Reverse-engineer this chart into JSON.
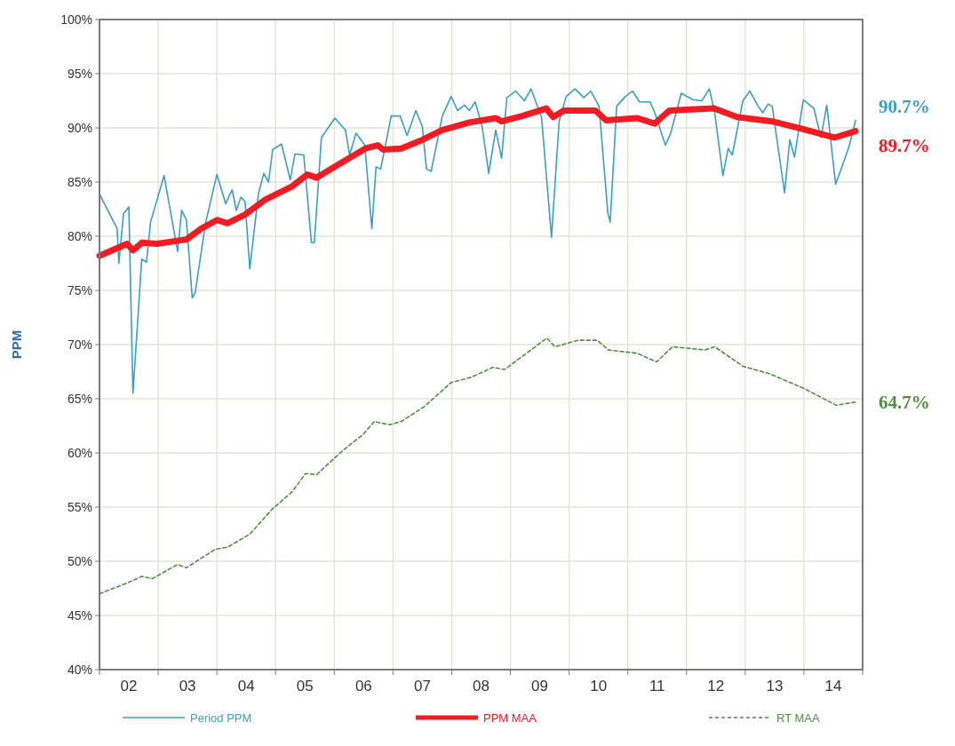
{
  "chart_data": {
    "type": "line",
    "ylabel": "PPM",
    "xlim": [
      1.5,
      14.5
    ],
    "ylim": [
      40,
      100
    ],
    "yticks": [
      {
        "value": 40,
        "label": "40%"
      },
      {
        "value": 45,
        "label": "45%"
      },
      {
        "value": 50,
        "label": "50%"
      },
      {
        "value": 55,
        "label": "55%"
      },
      {
        "value": 60,
        "label": "60%"
      },
      {
        "value": 65,
        "label": "65%"
      },
      {
        "value": 70,
        "label": "70%"
      },
      {
        "value": 75,
        "label": "75%"
      },
      {
        "value": 80,
        "label": "80%"
      },
      {
        "value": 85,
        "label": "85%"
      },
      {
        "value": 90,
        "label": "90%"
      },
      {
        "value": 95,
        "label": "95%"
      },
      {
        "value": 100,
        "label": "100%"
      }
    ],
    "xticks": [
      {
        "value": 1.5,
        "label": null
      },
      {
        "value": 2,
        "label": "02"
      },
      {
        "value": 2.5,
        "label": null
      },
      {
        "value": 3,
        "label": "03"
      },
      {
        "value": 3.5,
        "label": null
      },
      {
        "value": 4,
        "label": "04"
      },
      {
        "value": 4.5,
        "label": null
      },
      {
        "value": 5,
        "label": "05"
      },
      {
        "value": 5.5,
        "label": null
      },
      {
        "value": 6,
        "label": "06"
      },
      {
        "value": 6.5,
        "label": null
      },
      {
        "value": 7,
        "label": "07"
      },
      {
        "value": 7.5,
        "label": null
      },
      {
        "value": 8,
        "label": "08"
      },
      {
        "value": 8.5,
        "label": null
      },
      {
        "value": 9,
        "label": "09"
      },
      {
        "value": 9.5,
        "label": null
      },
      {
        "value": 10,
        "label": "10"
      },
      {
        "value": 10.5,
        "label": null
      },
      {
        "value": 11,
        "label": "11"
      },
      {
        "value": 11.5,
        "label": null
      },
      {
        "value": 12,
        "label": "12"
      },
      {
        "value": 12.5,
        "label": null
      },
      {
        "value": 13,
        "label": "13"
      },
      {
        "value": 13.5,
        "label": null
      },
      {
        "value": 14,
        "label": "14"
      },
      {
        "value": 14.5,
        "label": null
      }
    ],
    "grid": true,
    "legend": "bottom",
    "marker": "none",
    "series": [
      {
        "name": "Period PPM",
        "color": "#3a9fc6",
        "line_style": "solid",
        "x": [
          1.5,
          1.8,
          1.83,
          1.91,
          2.0,
          2.07,
          2.22,
          2.3,
          2.37,
          2.6,
          2.83,
          2.9,
          2.98,
          3.08,
          3.13,
          3.31,
          3.5,
          3.65,
          3.76,
          3.83,
          3.91,
          3.98,
          4.06,
          4.21,
          4.3,
          4.38,
          4.45,
          4.6,
          4.75,
          4.83,
          4.98,
          5.11,
          5.16,
          5.28,
          5.51,
          5.69,
          5.76,
          5.87,
          6.02,
          6.14,
          6.21,
          6.29,
          6.47,
          6.62,
          6.74,
          6.89,
          7.0,
          7.07,
          7.15,
          7.34,
          7.49,
          7.6,
          7.72,
          7.8,
          7.9,
          8.02,
          8.13,
          8.25,
          8.35,
          8.44,
          8.59,
          8.74,
          8.85,
          9.03,
          9.2,
          9.33,
          9.45,
          9.6,
          9.75,
          9.87,
          10.01,
          10.16,
          10.2,
          10.31,
          10.46,
          10.58,
          10.7,
          10.88,
          10.96,
          11.14,
          11.23,
          11.41,
          11.61,
          11.76,
          11.89,
          11.98,
          12.12,
          12.21,
          12.28,
          12.46,
          12.58,
          12.72,
          12.8,
          12.89,
          12.96,
          13.17,
          13.26,
          13.34,
          13.49,
          13.67,
          13.79,
          13.89,
          14.04,
          14.2,
          14.27,
          14.38
        ],
        "values": [
          83.9,
          80.7,
          77.5,
          82.1,
          82.7,
          65.5,
          77.9,
          77.6,
          81.3,
          85.6,
          78.6,
          82.4,
          81.5,
          74.3,
          74.8,
          81.3,
          85.7,
          83.0,
          84.3,
          82.4,
          83.6,
          83.2,
          77.0,
          84.0,
          85.8,
          85.0,
          88.0,
          88.5,
          85.2,
          87.6,
          87.5,
          79.4,
          79.4,
          89.1,
          90.9,
          89.8,
          87.5,
          89.5,
          88.4,
          80.7,
          86.4,
          86.2,
          91.1,
          91.1,
          89.3,
          91.6,
          90.1,
          86.2,
          86.0,
          91.1,
          92.9,
          91.6,
          92.1,
          91.6,
          92.4,
          90.1,
          85.8,
          89.8,
          87.2,
          92.8,
          93.4,
          92.5,
          93.6,
          91.0,
          79.9,
          90.6,
          92.9,
          93.6,
          92.8,
          93.4,
          92.0,
          82.1,
          81.3,
          92.0,
          92.9,
          93.4,
          92.4,
          92.4,
          91.4,
          88.4,
          89.5,
          93.2,
          92.6,
          92.5,
          93.6,
          91.4,
          85.6,
          88.1,
          87.5,
          92.5,
          93.4,
          92.0,
          91.4,
          92.2,
          92.0,
          84.0,
          88.9,
          87.3,
          92.6,
          91.8,
          89.1,
          92.1,
          84.8,
          87.2,
          88.3,
          90.7
        ],
        "value_labels": [
          null,
          null,
          null,
          null,
          null,
          null,
          null,
          null,
          null,
          null,
          null,
          null,
          null,
          null,
          null,
          null,
          null,
          null,
          null,
          null,
          null,
          null,
          null,
          null,
          null,
          null,
          null,
          null,
          null,
          null,
          null,
          null,
          null,
          null,
          null,
          null,
          null,
          null,
          null,
          null,
          null,
          null,
          null,
          null,
          null,
          null,
          null,
          null,
          null,
          null,
          null,
          null,
          null,
          null,
          null,
          null,
          null,
          null,
          null,
          null,
          null,
          null,
          null,
          null,
          null,
          null,
          null,
          null,
          null,
          null,
          null,
          null,
          null,
          null,
          null,
          null,
          null,
          null,
          null,
          null,
          null,
          null,
          null,
          null,
          null,
          null,
          null,
          null,
          null,
          null,
          null,
          null,
          null,
          null,
          null,
          null,
          null,
          null,
          null,
          null,
          null,
          null,
          null,
          null,
          null,
          "90.7%"
        ]
      },
      {
        "name": "PPM MAA",
        "color": "#f01c24",
        "line_style": "solid",
        "x": [
          1.5,
          1.97,
          2.07,
          2.22,
          2.48,
          2.98,
          3.23,
          3.5,
          3.68,
          3.98,
          4.33,
          4.78,
          5.04,
          5.2,
          5.69,
          6.03,
          6.24,
          6.33,
          6.64,
          7.0,
          7.34,
          7.8,
          8.25,
          8.35,
          8.7,
          9.11,
          9.23,
          9.41,
          9.95,
          10.13,
          10.66,
          10.96,
          11.08,
          11.21,
          11.97,
          12.36,
          12.96,
          13.47,
          14.02,
          14.38
        ],
        "values": [
          78.2,
          79.3,
          78.7,
          79.4,
          79.3,
          79.7,
          80.7,
          81.5,
          81.2,
          82.0,
          83.4,
          84.6,
          85.7,
          85.4,
          87.0,
          88.1,
          88.4,
          88.0,
          88.1,
          88.9,
          89.8,
          90.5,
          90.9,
          90.6,
          91.1,
          91.8,
          91.0,
          91.6,
          91.6,
          90.7,
          90.9,
          90.4,
          91.0,
          91.6,
          91.8,
          91.0,
          90.6,
          89.9,
          89.1,
          89.7
        ],
        "value_labels": [
          null,
          null,
          null,
          null,
          null,
          null,
          null,
          null,
          null,
          null,
          null,
          null,
          null,
          null,
          null,
          null,
          null,
          null,
          null,
          null,
          null,
          null,
          null,
          null,
          null,
          null,
          null,
          null,
          null,
          null,
          null,
          null,
          null,
          null,
          null,
          null,
          null,
          null,
          null,
          "89.7%"
        ]
      },
      {
        "name": "RT MAA",
        "color": "#4f8f3f",
        "line_style": "dashed",
        "x": [
          1.5,
          1.97,
          2.22,
          2.4,
          2.83,
          2.98,
          3.47,
          3.68,
          4.06,
          4.44,
          4.78,
          5.01,
          5.2,
          5.64,
          5.99,
          6.18,
          6.44,
          6.64,
          7.04,
          7.49,
          7.84,
          8.2,
          8.4,
          8.55,
          8.85,
          9.12,
          9.26,
          9.65,
          9.98,
          10.17,
          10.66,
          10.99,
          11.26,
          11.82,
          11.98,
          12.46,
          12.92,
          13.52,
          14.05,
          14.38
        ],
        "values": [
          47.0,
          48.0,
          48.6,
          48.4,
          49.7,
          49.4,
          51.1,
          51.3,
          52.5,
          54.8,
          56.4,
          58.1,
          58.0,
          60.2,
          61.7,
          62.9,
          62.6,
          62.9,
          64.3,
          66.5,
          67.0,
          67.9,
          67.7,
          68.3,
          69.5,
          70.6,
          69.8,
          70.4,
          70.4,
          69.5,
          69.2,
          68.4,
          69.8,
          69.5,
          69.8,
          68.0,
          67.3,
          65.9,
          64.4,
          64.7
        ],
        "value_labels": [
          null,
          null,
          null,
          null,
          null,
          null,
          null,
          null,
          null,
          null,
          null,
          null,
          null,
          null,
          null,
          null,
          null,
          null,
          null,
          null,
          null,
          null,
          null,
          null,
          null,
          null,
          null,
          null,
          null,
          null,
          null,
          null,
          null,
          null,
          null,
          null,
          null,
          null,
          null,
          "64.7%"
        ]
      }
    ]
  }
}
